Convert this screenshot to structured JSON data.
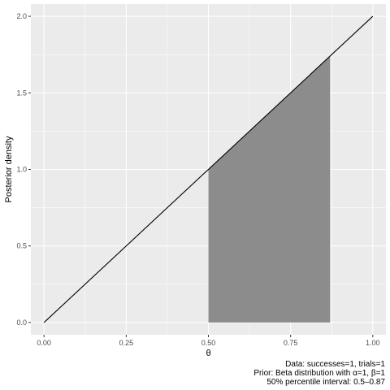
{
  "chart_data": {
    "type": "line",
    "xlabel": "θ",
    "ylabel": "Posterior density",
    "xlim": [
      -0.04,
      1.04
    ],
    "ylim": [
      -0.08,
      2.08
    ],
    "x_ticks": [
      0.0,
      0.25,
      0.5,
      0.75,
      1.0
    ],
    "x_tick_labels": [
      "0.00",
      "0.25",
      "0.50",
      "0.75",
      "1.00"
    ],
    "y_ticks": [
      0.0,
      0.5,
      1.0,
      1.5,
      2.0
    ],
    "y_tick_labels": [
      "0.0",
      "0.5",
      "1.0",
      "1.5",
      "2.0"
    ],
    "grid": true,
    "series": [
      {
        "x": [
          0.0,
          1.0
        ],
        "y": [
          0.0,
          2.0
        ]
      }
    ],
    "shaded_interval": {
      "x_from": 0.5,
      "x_to": 0.87
    },
    "caption": [
      "Data: successes=1, trials=1",
      "Prior: Beta distribution with α=1, β=1",
      "50% percentile interval: 0.5–0.87"
    ],
    "colors": {
      "panel_background": "#ebebeb",
      "grid_major": "#ffffff",
      "line": "#000000",
      "shade": "#8c8c8c",
      "tick_text": "#4d4d4d"
    }
  }
}
